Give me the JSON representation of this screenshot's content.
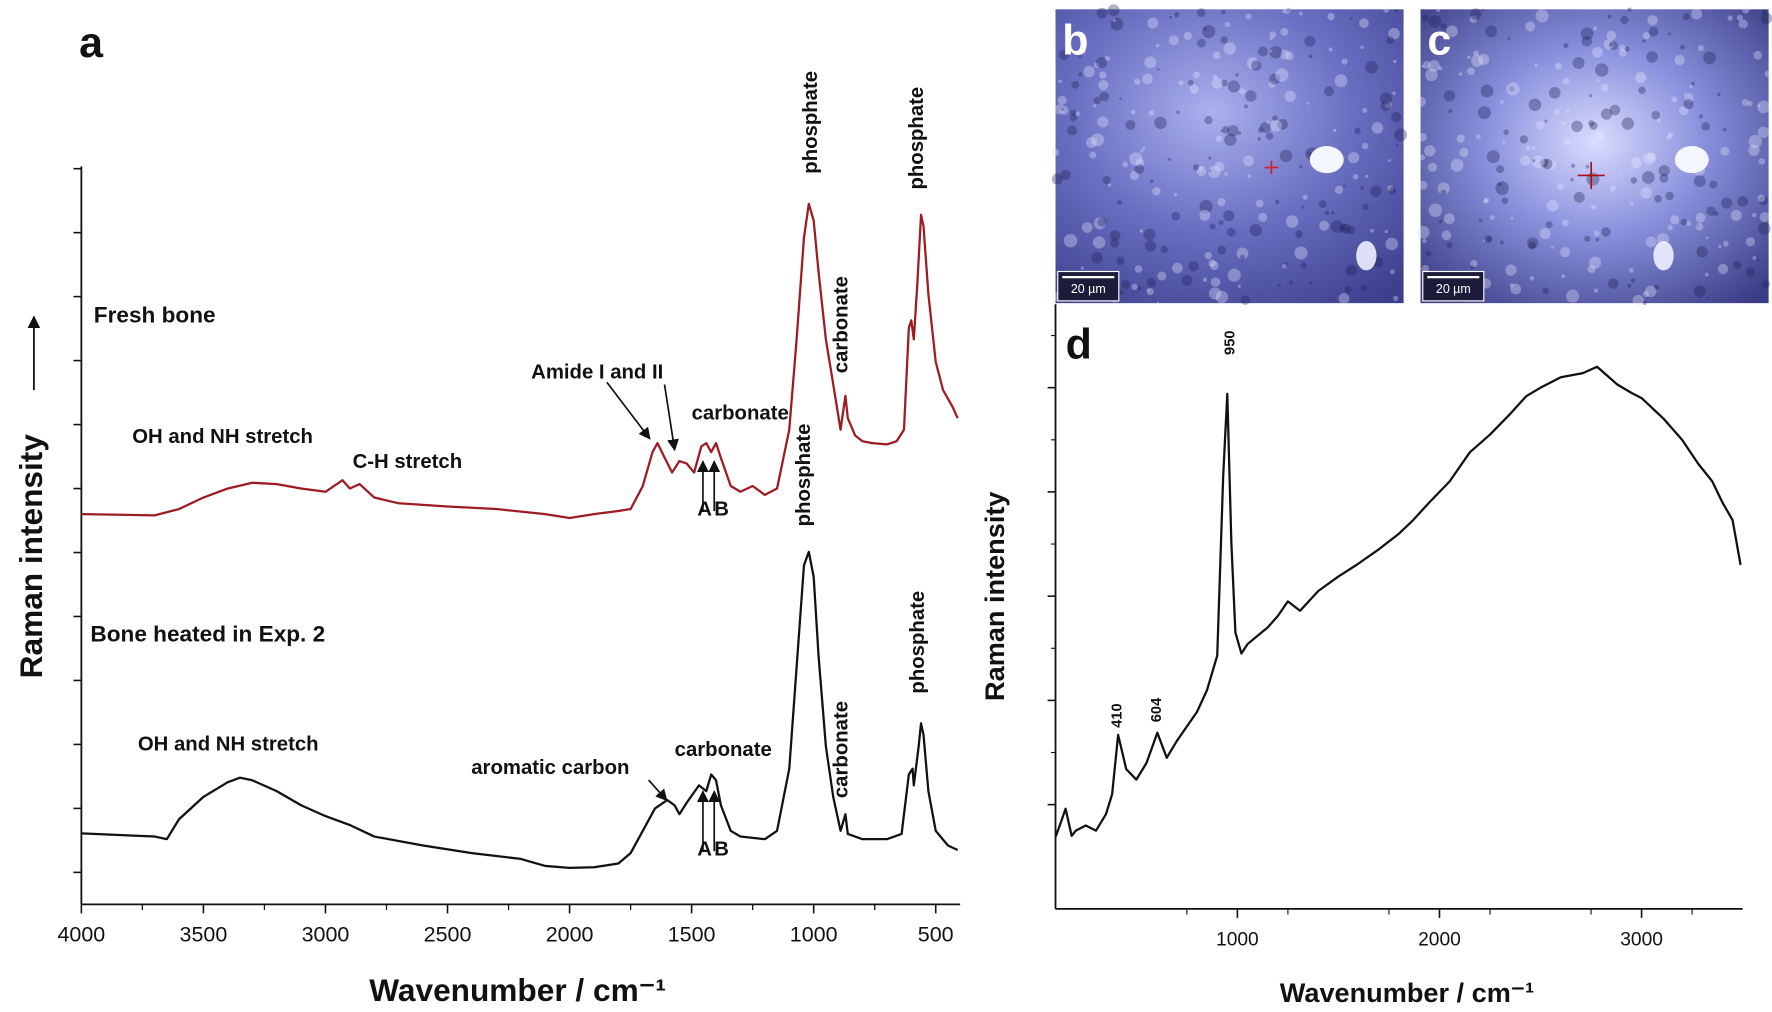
{
  "chart_data": [
    {
      "type": "line",
      "panel": "a",
      "xlabel": "Wavenumber / cm⁻¹",
      "ylabel": "Raman intensity",
      "xlim": [
        4000,
        400
      ],
      "ylim": [
        -0.5,
        11
      ],
      "xticks": [
        4000,
        3500,
        3000,
        2500,
        2000,
        1500,
        1000,
        500
      ],
      "yticks": [
        0,
        1,
        2,
        3,
        4,
        5,
        6,
        7,
        8,
        9,
        10,
        11
      ],
      "series": [
        {
          "name": "Fresh bone",
          "color": "#9e1b24",
          "x": [
            4000,
            3700,
            3600,
            3500,
            3400,
            3300,
            3200,
            3100,
            3000,
            2930,
            2900,
            2860,
            2800,
            2700,
            2500,
            2300,
            2100,
            2000,
            1900,
            1800,
            1750,
            1700,
            1660,
            1640,
            1610,
            1580,
            1550,
            1520,
            1490,
            1460,
            1440,
            1420,
            1400,
            1380,
            1340,
            1300,
            1250,
            1200,
            1150,
            1100,
            1070,
            1040,
            1020,
            1000,
            980,
            950,
            920,
            890,
            870,
            860,
            830,
            800,
            760,
            700,
            660,
            630,
            610,
            600,
            590,
            575,
            560,
            550,
            530,
            500,
            470,
            430,
            410
          ],
          "values": [
            5.6,
            5.58,
            5.68,
            5.86,
            6.0,
            6.09,
            6.07,
            6.0,
            5.95,
            6.13,
            6.0,
            6.07,
            5.86,
            5.77,
            5.72,
            5.68,
            5.6,
            5.54,
            5.6,
            5.65,
            5.68,
            6.04,
            6.57,
            6.71,
            6.48,
            6.25,
            6.43,
            6.39,
            6.25,
            6.66,
            6.71,
            6.57,
            6.71,
            6.48,
            6.04,
            5.95,
            6.04,
            5.9,
            6.0,
            6.92,
            8.33,
            9.92,
            10.45,
            10.19,
            9.39,
            8.33,
            7.63,
            6.92,
            7.45,
            7.1,
            6.83,
            6.74,
            6.71,
            6.69,
            6.74,
            6.92,
            8.51,
            8.63,
            8.33,
            9.22,
            10.28,
            10.1,
            9.04,
            7.98,
            7.54,
            7.27,
            7.1
          ]
        },
        {
          "name": "Bone heated in Exp. 2",
          "color": "#111111",
          "x": [
            4000,
            3700,
            3650,
            3600,
            3500,
            3400,
            3350,
            3300,
            3200,
            3100,
            3000,
            2900,
            2800,
            2600,
            2400,
            2200,
            2100,
            2000,
            1900,
            1800,
            1750,
            1700,
            1650,
            1600,
            1570,
            1550,
            1520,
            1470,
            1440,
            1420,
            1400,
            1380,
            1340,
            1300,
            1200,
            1150,
            1100,
            1070,
            1040,
            1020,
            1000,
            980,
            950,
            920,
            890,
            870,
            860,
            800,
            700,
            640,
            610,
            595,
            590,
            570,
            560,
            550,
            530,
            500,
            450,
            410
          ],
          "values": [
            0.61,
            0.56,
            0.52,
            0.83,
            1.18,
            1.41,
            1.48,
            1.44,
            1.27,
            1.05,
            0.88,
            0.74,
            0.56,
            0.42,
            0.3,
            0.21,
            0.1,
            0.07,
            0.08,
            0.14,
            0.3,
            0.65,
            1.0,
            1.13,
            1.05,
            0.91,
            1.09,
            1.36,
            1.27,
            1.53,
            1.44,
            1.05,
            0.65,
            0.56,
            0.52,
            0.65,
            1.62,
            3.21,
            4.8,
            5.01,
            4.62,
            3.39,
            1.97,
            1.18,
            0.65,
            0.91,
            0.6,
            0.52,
            0.52,
            0.6,
            1.53,
            1.62,
            1.36,
            1.97,
            2.33,
            2.15,
            1.27,
            0.65,
            0.42,
            0.35
          ]
        }
      ],
      "annotations": [
        "OH and NH stretch",
        "C-H stretch",
        "Amide I and II",
        "carbonate",
        "A",
        "B",
        "phosphate",
        "carbonate",
        "phosphate",
        "OH and NH stretch",
        "aromatic carbon",
        "carbonate",
        "A",
        "B",
        "phosphate",
        "carbonate",
        "phosphate"
      ]
    },
    {
      "type": "line",
      "panel": "d",
      "xlabel": "Wavenumber / cm⁻¹",
      "ylabel": "Raman intensity",
      "xlim": [
        100,
        3500
      ],
      "ylim": [
        0,
        5.8
      ],
      "xticks": [
        1000,
        2000,
        3000
      ],
      "yticks": [
        1,
        2,
        3,
        4,
        5
      ],
      "series": [
        {
          "name": null,
          "color": "#111111",
          "x": [
            100,
            130,
            150,
            180,
            200,
            250,
            300,
            350,
            380,
            410,
            450,
            500,
            550,
            604,
            650,
            700,
            750,
            800,
            850,
            900,
            930,
            950,
            970,
            990,
            1020,
            1050,
            1100,
            1150,
            1200,
            1250,
            1310,
            1400,
            1500,
            1590,
            1700,
            1800,
            1870,
            1950,
            2050,
            2150,
            2250,
            2350,
            2430,
            2500,
            2600,
            2710,
            2780,
            2880,
            2950,
            3000,
            3110,
            3200,
            3280,
            3350,
            3400,
            3450,
            3490
          ],
          "values": [
            0.69,
            0.85,
            0.96,
            0.7,
            0.75,
            0.8,
            0.75,
            0.91,
            1.1,
            1.67,
            1.34,
            1.24,
            1.4,
            1.69,
            1.45,
            1.61,
            1.75,
            1.89,
            2.1,
            2.43,
            4.16,
            4.94,
            3.51,
            2.65,
            2.45,
            2.54,
            2.62,
            2.7,
            2.81,
            2.95,
            2.86,
            3.05,
            3.19,
            3.3,
            3.45,
            3.6,
            3.73,
            3.9,
            4.1,
            4.38,
            4.55,
            4.75,
            4.92,
            5.0,
            5.1,
            5.14,
            5.2,
            5.03,
            4.95,
            4.9,
            4.7,
            4.5,
            4.27,
            4.1,
            3.9,
            3.73,
            3.3
          ]
        }
      ],
      "annotations": [
        "950",
        "410",
        "604"
      ]
    }
  ],
  "micrographs": [
    {
      "panel": "b",
      "scale_bar": "20 µm"
    },
    {
      "panel": "c",
      "scale_bar": "20 µm"
    }
  ]
}
